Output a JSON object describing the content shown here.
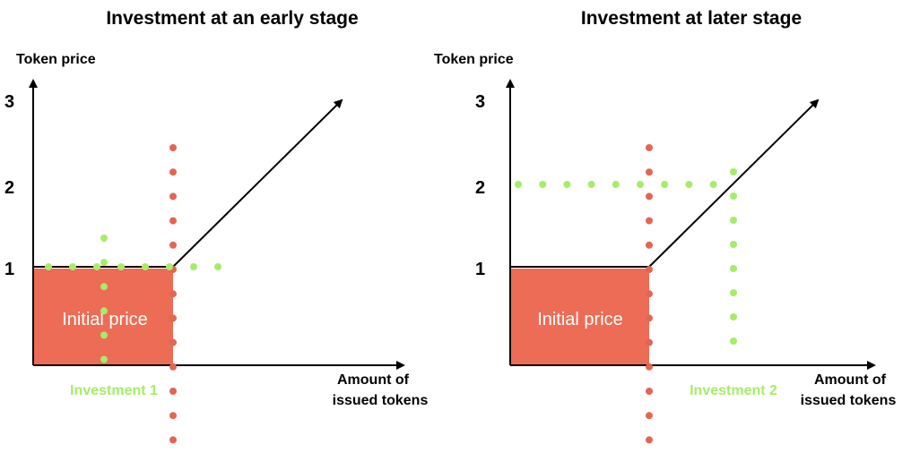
{
  "colors": {
    "box": "#ec6c55",
    "red_dots": "#e36552",
    "green_dots": "#a6ec6a",
    "axis": "#000000"
  },
  "panels": [
    {
      "title": "Investment at an early stage",
      "y_axis_label": "Token price",
      "x_axis_label_line1": "Amount of",
      "x_axis_label_line2": "issued tokens",
      "y_ticks": [
        "1",
        "2",
        "3"
      ],
      "box_label": "Initial price",
      "investment_label": "Investment 1"
    },
    {
      "title": "Investment at later stage",
      "y_axis_label": "Token price",
      "x_axis_label_line1": "Amount of",
      "x_axis_label_line2": "issued tokens",
      "y_ticks": [
        "1",
        "2",
        "3"
      ],
      "box_label": "Initial price",
      "investment_label": "Investment 2"
    }
  ]
}
